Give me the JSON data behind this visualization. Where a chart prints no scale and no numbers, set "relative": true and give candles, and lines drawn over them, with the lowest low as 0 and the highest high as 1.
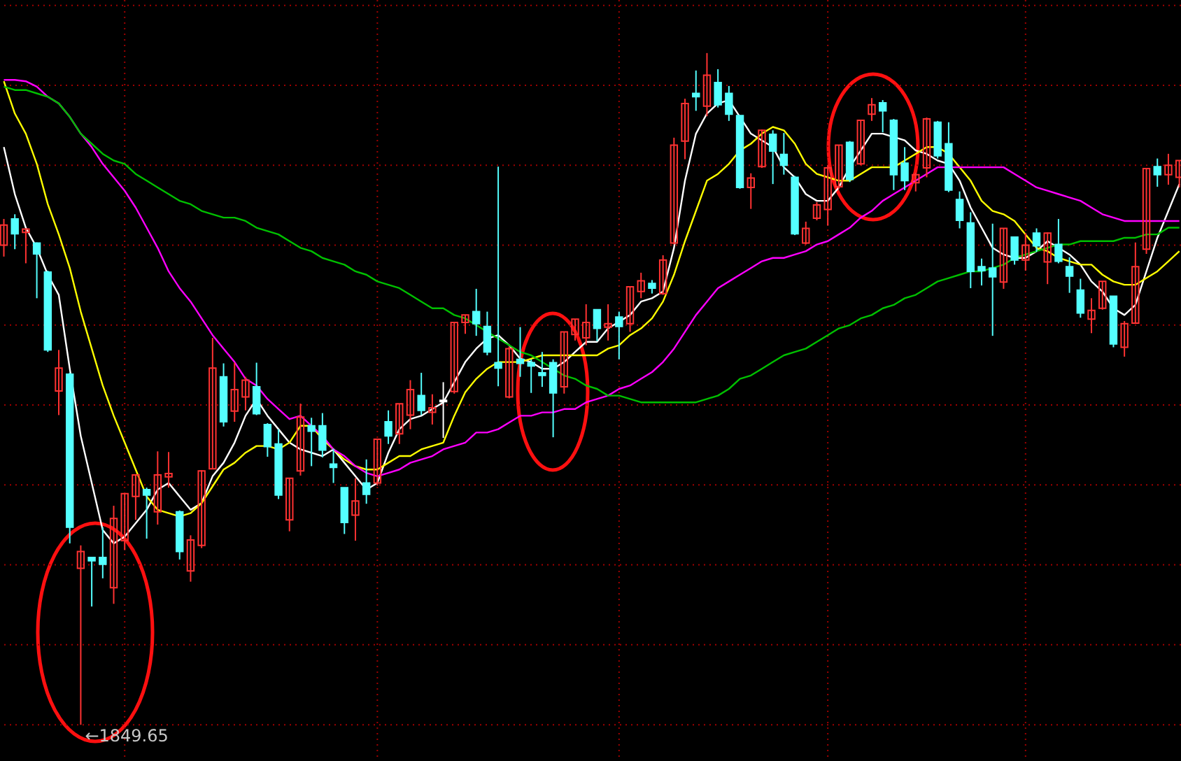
{
  "chart_data": {
    "type": "candlestick",
    "relative": true,
    "grid": true,
    "categories": [
      null,
      null,
      null,
      null,
      null,
      null,
      null,
      null,
      null,
      null,
      null,
      null,
      null,
      null,
      null,
      null,
      null,
      null,
      null,
      null,
      null,
      null,
      null,
      null,
      null,
      null,
      null,
      null,
      null,
      null,
      null,
      null,
      null,
      null,
      null,
      null,
      null,
      null,
      null,
      null,
      null,
      null,
      null,
      null,
      null,
      null,
      null,
      null,
      null,
      null,
      null,
      null,
      null,
      null,
      null,
      null,
      null,
      null,
      null,
      null,
      null,
      null,
      null,
      null,
      null,
      null,
      null,
      null,
      null,
      null,
      null,
      null,
      null,
      null,
      null,
      null,
      null,
      null,
      null,
      null,
      null,
      null,
      null,
      null,
      null,
      null,
      null,
      null,
      null,
      null,
      null,
      null,
      null,
      null,
      null,
      null,
      null,
      null,
      null,
      null,
      null,
      null,
      null,
      null,
      null,
      null,
      null,
      null
    ],
    "ohlc": [
      [
        0.714,
        0.753,
        0.697,
        0.744
      ],
      [
        0.753,
        0.76,
        0.708,
        0.731
      ],
      [
        0.733,
        0.739,
        0.687,
        0.738
      ],
      [
        0.717,
        0.718,
        0.635,
        0.701
      ],
      [
        0.674,
        0.676,
        0.555,
        0.558
      ],
      [
        0.497,
        0.558,
        0.461,
        0.531
      ],
      [
        0.522,
        0.524,
        0.27,
        0.294
      ],
      [
        0.233,
        0.267,
        0,
        0.258
      ],
      [
        0.249,
        0.249,
        0.176,
        0.244
      ],
      [
        0.249,
        0.294,
        0.218,
        0.239
      ],
      [
        0.204,
        0.326,
        0.18,
        0.307
      ],
      [
        0.274,
        0.344,
        0.26,
        0.344
      ],
      [
        0.34,
        0.372,
        0.305,
        0.372
      ],
      [
        0.35,
        0.353,
        0.277,
        0.342
      ],
      [
        0.317,
        0.407,
        0.298,
        0.372
      ],
      [
        0.369,
        0.406,
        0.353,
        0.374
      ],
      [
        0.317,
        0.319,
        0.246,
        0.258
      ],
      [
        0.229,
        0.282,
        0.213,
        0.275
      ],
      [
        0.267,
        0.379,
        0.263,
        0.378
      ],
      [
        0.381,
        0.576,
        0.381,
        0.531
      ],
      [
        0.518,
        0.538,
        0.444,
        0.451
      ],
      [
        0.467,
        0.539,
        0.451,
        0.499
      ],
      [
        0.488,
        0.518,
        0.468,
        0.513
      ],
      [
        0.503,
        0.539,
        0.461,
        0.463
      ],
      [
        0.447,
        0.449,
        0.399,
        0.414
      ],
      [
        0.418,
        0.44,
        0.336,
        0.342
      ],
      [
        0.305,
        0.367,
        0.288,
        0.367
      ],
      [
        0.378,
        0.478,
        0.371,
        0.458
      ],
      [
        0.445,
        0.457,
        0.385,
        0.437
      ],
      [
        0.445,
        0.464,
        0.398,
        0.409
      ],
      [
        0.388,
        0.411,
        0.36,
        0.383
      ],
      [
        0.353,
        0.353,
        0.284,
        0.301
      ],
      [
        0.312,
        0.367,
        0.274,
        0.333
      ],
      [
        0.36,
        0.395,
        0.329,
        0.343
      ],
      [
        0.36,
        0.425,
        0.356,
        0.425
      ],
      [
        0.451,
        0.468,
        0.418,
        0.43
      ],
      [
        0.433,
        0.478,
        0.418,
        0.478
      ],
      [
        0.461,
        0.513,
        0.44,
        0.499
      ],
      [
        0.49,
        0.524,
        0.461,
        0.468
      ],
      [
        0.465,
        0.492,
        0.447,
        0.472
      ],
      [
        0.483,
        0.51,
        0.427,
        0.481
      ],
      [
        0.496,
        0.599,
        0.493,
        0.599
      ],
      [
        0.599,
        0.61,
        0.582,
        0.61
      ],
      [
        0.615,
        0.649,
        0.579,
        0.597
      ],
      [
        0.593,
        0.615,
        0.55,
        0.555
      ],
      [
        0.539,
        0.831,
        0.504,
        0.531
      ],
      [
        0.488,
        0.563,
        0.486,
        0.56
      ],
      [
        0.544,
        0.592,
        0.518,
        0.538
      ],
      [
        0.539,
        0.544,
        0.494,
        0.534
      ],
      [
        0.524,
        0.555,
        0.503,
        0.52
      ],
      [
        0.539,
        0.544,
        0.428,
        0.494
      ],
      [
        0.503,
        0.585,
        0.493,
        0.585
      ],
      [
        0.581,
        0.604,
        0.572,
        0.604
      ],
      [
        0.576,
        0.626,
        0.565,
        0.599
      ],
      [
        0.618,
        0.618,
        0.571,
        0.59
      ],
      [
        0.592,
        0.626,
        0.572,
        0.597
      ],
      [
        0.607,
        0.615,
        0.544,
        0.593
      ],
      [
        0.597,
        0.652,
        0.585,
        0.652
      ],
      [
        0.645,
        0.673,
        0.635,
        0.661
      ],
      [
        0.657,
        0.662,
        0.642,
        0.65
      ],
      [
        0.642,
        0.699,
        0.64,
        0.692
      ],
      [
        0.717,
        0.874,
        0.715,
        0.863
      ],
      [
        0.869,
        0.932,
        0.842,
        0.925
      ],
      [
        0.94,
        0.974,
        0.914,
        0.935
      ],
      [
        0.921,
        1,
        0.906,
        0.967
      ],
      [
        0.956,
        0.976,
        0.919,
        0.923
      ],
      [
        0.94,
        0.951,
        0.899,
        0.909
      ],
      [
        0.907,
        0.907,
        0.798,
        0.8
      ],
      [
        0.8,
        0.821,
        0.768,
        0.814
      ],
      [
        0.831,
        0.886,
        0.829,
        0.885
      ],
      [
        0.879,
        0.885,
        0.805,
        0.854
      ],
      [
        0.849,
        0.881,
        0.819,
        0.833
      ],
      [
        0.815,
        0.817,
        0.729,
        0.731
      ],
      [
        0.717,
        0.749,
        0.715,
        0.739
      ],
      [
        0.754,
        0.778,
        0.751,
        0.774
      ],
      [
        0.767,
        0.833,
        0.743,
        0.829
      ],
      [
        0.801,
        0.863,
        0.798,
        0.863
      ],
      [
        0.867,
        0.869,
        0.808,
        0.812
      ],
      [
        0.835,
        0.9,
        0.833,
        0.9
      ],
      [
        0.909,
        0.933,
        0.899,
        0.923
      ],
      [
        0.926,
        0.93,
        0.882,
        0.914
      ],
      [
        0.9,
        0.902,
        0.796,
        0.819
      ],
      [
        0.836,
        0.86,
        0.796,
        0.81
      ],
      [
        0.807,
        0.822,
        0.794,
        0.819
      ],
      [
        0.829,
        0.904,
        0.815,
        0.902
      ],
      [
        0.897,
        0.899,
        0.843,
        0.847
      ],
      [
        0.865,
        0.897,
        0.793,
        0.796
      ],
      [
        0.782,
        0.794,
        0.739,
        0.751
      ],
      [
        0.747,
        0.763,
        0.65,
        0.675
      ],
      [
        0.682,
        0.694,
        0.654,
        0.676
      ],
      [
        0.68,
        0.746,
        0.579,
        0.667
      ],
      [
        0.659,
        0.739,
        0.649,
        0.739
      ],
      [
        0.726,
        0.726,
        0.685,
        0.692
      ],
      [
        0.692,
        0.732,
        0.676,
        0.714
      ],
      [
        0.732,
        0.739,
        0.704,
        0.713
      ],
      [
        0.689,
        0.733,
        0.656,
        0.732
      ],
      [
        0.715,
        0.753,
        0.687,
        0.69
      ],
      [
        0.682,
        0.696,
        0.643,
        0.668
      ],
      [
        0.647,
        0.664,
        0.606,
        0.613
      ],
      [
        0.604,
        0.635,
        0.583,
        0.617
      ],
      [
        0.62,
        0.66,
        0.618,
        0.66
      ],
      [
        0.638,
        0.638,
        0.562,
        0.567
      ],
      [
        0.562,
        0.601,
        0.548,
        0.597
      ],
      [
        0.598,
        0.718,
        0.597,
        0.682
      ],
      [
        0.708,
        0.828,
        0.701,
        0.828
      ],
      [
        0.831,
        0.843,
        0.801,
        0.819
      ],
      [
        0.819,
        0.85,
        0.804,
        0.833
      ],
      [
        0.815,
        0.84,
        0.8,
        0.84
      ]
    ],
    "colors": [
      "#ff3232",
      "#54ffff",
      "#ff3232",
      "#54ffff",
      "#54ffff",
      "#ff3232",
      "#54ffff",
      "#ff3232",
      "#54ffff",
      "#54ffff",
      "#ff3232",
      "#ff3232",
      "#ff3232",
      "#54ffff",
      "#ff3232",
      "#ff3232",
      "#54ffff",
      "#ff3232",
      "#ff3232",
      "#ff3232",
      "#54ffff",
      "#ff3232",
      "#ff3232",
      "#54ffff",
      "#54ffff",
      "#54ffff",
      "#ff3232",
      "#ff3232",
      "#54ffff",
      "#54ffff",
      "#54ffff",
      "#54ffff",
      "#ff3232",
      "#54ffff",
      "#ff3232",
      "#54ffff",
      "#ff3232",
      "#ff3232",
      "#54ffff",
      "#ff3232",
      "#ffffff",
      "#ff3232",
      "#ff3232",
      "#54ffff",
      "#54ffff",
      "#54ffff",
      "#ff3232",
      "#54ffff",
      "#54ffff",
      "#54ffff",
      "#54ffff",
      "#ff3232",
      "#ff3232",
      "#ff3232",
      "#54ffff",
      "#ff3232",
      "#54ffff",
      "#ff3232",
      "#ff3232",
      "#54ffff",
      "#ff3232",
      "#ff3232",
      "#ff3232",
      "#54ffff",
      "#ff3232",
      "#54ffff",
      "#54ffff",
      "#54ffff",
      "#ff3232",
      "#ff3232",
      "#54ffff",
      "#54ffff",
      "#54ffff",
      "#ff3232",
      "#ff3232",
      "#ff3232",
      "#ff3232",
      "#54ffff",
      "#ff3232",
      "#ff3232",
      "#54ffff",
      "#54ffff",
      "#54ffff",
      "#ff3232",
      "#ff3232",
      "#54ffff",
      "#54ffff",
      "#54ffff",
      "#54ffff",
      "#54ffff",
      "#54ffff",
      "#ff3232",
      "#54ffff",
      "#ff3232",
      "#54ffff",
      "#ff3232",
      "#54ffff",
      "#54ffff",
      "#54ffff",
      "#ff3232",
      "#ff3232",
      "#54ffff",
      "#ff3232",
      "#ff3232",
      "#ff3232",
      "#54ffff",
      "#ff3232",
      "#ff3232"
    ],
    "series": [
      {
        "type": "line",
        "color": "#ffffff",
        "values": [
          0.86,
          0.79,
          0.74,
          0.71,
          0.67,
          0.64,
          0.53,
          0.43,
          0.36,
          0.29,
          0.27,
          0.28,
          0.3,
          0.32,
          0.35,
          0.36,
          0.34,
          0.32,
          0.33,
          0.37,
          0.39,
          0.42,
          0.46,
          0.485,
          0.46,
          0.44,
          0.42,
          0.41,
          0.405,
          0.4,
          0.41,
          0.39,
          0.37,
          0.35,
          0.36,
          0.405,
          0.44,
          0.455,
          0.46,
          0.47,
          0.48,
          0.51,
          0.54,
          0.56,
          0.575,
          0.58,
          0.565,
          0.545,
          0.54,
          0.53,
          0.53,
          0.54,
          0.555,
          0.57,
          0.57,
          0.59,
          0.6,
          0.61,
          0.63,
          0.635,
          0.645,
          0.71,
          0.81,
          0.88,
          0.91,
          0.925,
          0.93,
          0.905,
          0.88,
          0.87,
          0.86,
          0.83,
          0.815,
          0.79,
          0.78,
          0.78,
          0.8,
          0.83,
          0.855,
          0.88,
          0.88,
          0.875,
          0.87,
          0.855,
          0.85,
          0.84,
          0.835,
          0.81,
          0.77,
          0.74,
          0.71,
          0.7,
          0.695,
          0.695,
          0.705,
          0.72,
          0.71,
          0.7,
          0.685,
          0.66,
          0.645,
          0.62,
          0.61,
          0.625,
          0.675,
          0.725,
          0.765,
          0.805
        ]
      },
      {
        "type": "line",
        "color": "#ffff00",
        "values": [
          0.958,
          0.91,
          0.88,
          0.835,
          0.775,
          0.73,
          0.68,
          0.615,
          0.56,
          0.505,
          0.46,
          0.42,
          0.38,
          0.34,
          0.32,
          0.315,
          0.31,
          0.315,
          0.33,
          0.355,
          0.38,
          0.39,
          0.405,
          0.415,
          0.415,
          0.41,
          0.42,
          0.445,
          0.445,
          0.425,
          0.41,
          0.395,
          0.385,
          0.38,
          0.38,
          0.39,
          0.4,
          0.4,
          0.41,
          0.415,
          0.42,
          0.46,
          0.495,
          0.515,
          0.53,
          0.54,
          0.54,
          0.54,
          0.545,
          0.55,
          0.55,
          0.55,
          0.55,
          0.55,
          0.55,
          0.56,
          0.565,
          0.58,
          0.59,
          0.605,
          0.63,
          0.67,
          0.72,
          0.765,
          0.81,
          0.82,
          0.835,
          0.855,
          0.865,
          0.88,
          0.89,
          0.885,
          0.865,
          0.835,
          0.82,
          0.815,
          0.81,
          0.81,
          0.82,
          0.83,
          0.83,
          0.83,
          0.84,
          0.85,
          0.86,
          0.86,
          0.85,
          0.83,
          0.81,
          0.78,
          0.765,
          0.76,
          0.75,
          0.73,
          0.71,
          0.705,
          0.695,
          0.69,
          0.685,
          0.685,
          0.67,
          0.66,
          0.655,
          0.655,
          0.665,
          0.675,
          0.69,
          0.705
        ]
      },
      {
        "type": "line",
        "color": "#ff00ff",
        "values": [
          0.96,
          0.96,
          0.958,
          0.95,
          0.935,
          0.925,
          0.905,
          0.88,
          0.86,
          0.835,
          0.815,
          0.795,
          0.77,
          0.74,
          0.71,
          0.675,
          0.65,
          0.63,
          0.605,
          0.58,
          0.56,
          0.54,
          0.515,
          0.505,
          0.485,
          0.47,
          0.455,
          0.46,
          0.445,
          0.43,
          0.41,
          0.4,
          0.385,
          0.375,
          0.37,
          0.375,
          0.38,
          0.39,
          0.395,
          0.4,
          0.41,
          0.415,
          0.42,
          0.435,
          0.435,
          0.44,
          0.45,
          0.46,
          0.46,
          0.465,
          0.465,
          0.47,
          0.47,
          0.48,
          0.485,
          0.49,
          0.5,
          0.505,
          0.515,
          0.525,
          0.54,
          0.56,
          0.585,
          0.61,
          0.63,
          0.65,
          0.66,
          0.67,
          0.68,
          0.69,
          0.695,
          0.695,
          0.7,
          0.705,
          0.715,
          0.72,
          0.73,
          0.74,
          0.755,
          0.765,
          0.78,
          0.79,
          0.8,
          0.81,
          0.82,
          0.83,
          0.83,
          0.83,
          0.83,
          0.83,
          0.83,
          0.83,
          0.82,
          0.81,
          0.8,
          0.795,
          0.79,
          0.785,
          0.78,
          0.77,
          0.76,
          0.755,
          0.75,
          0.75,
          0.75,
          0.75,
          0.75,
          0.75
        ]
      },
      {
        "type": "line",
        "color": "#00c000",
        "values": [
          0.95,
          0.945,
          0.945,
          0.94,
          0.935,
          0.925,
          0.905,
          0.88,
          0.865,
          0.85,
          0.84,
          0.835,
          0.82,
          0.81,
          0.8,
          0.79,
          0.78,
          0.775,
          0.765,
          0.76,
          0.755,
          0.755,
          0.75,
          0.74,
          0.735,
          0.73,
          0.72,
          0.71,
          0.705,
          0.695,
          0.69,
          0.685,
          0.675,
          0.67,
          0.66,
          0.655,
          0.65,
          0.64,
          0.63,
          0.62,
          0.62,
          0.61,
          0.605,
          0.595,
          0.585,
          0.575,
          0.565,
          0.555,
          0.55,
          0.54,
          0.53,
          0.52,
          0.515,
          0.505,
          0.5,
          0.49,
          0.49,
          0.485,
          0.48,
          0.48,
          0.48,
          0.48,
          0.48,
          0.48,
          0.485,
          0.49,
          0.5,
          0.515,
          0.52,
          0.53,
          0.54,
          0.55,
          0.555,
          0.56,
          0.57,
          0.58,
          0.59,
          0.595,
          0.605,
          0.61,
          0.62,
          0.625,
          0.635,
          0.64,
          0.65,
          0.66,
          0.665,
          0.67,
          0.675,
          0.675,
          0.68,
          0.685,
          0.695,
          0.7,
          0.705,
          0.71,
          0.715,
          0.715,
          0.72,
          0.72,
          0.72,
          0.72,
          0.725,
          0.725,
          0.73,
          0.73,
          0.74,
          0.74
        ]
      }
    ],
    "annotations": [
      "←1849.65"
    ]
  }
}
